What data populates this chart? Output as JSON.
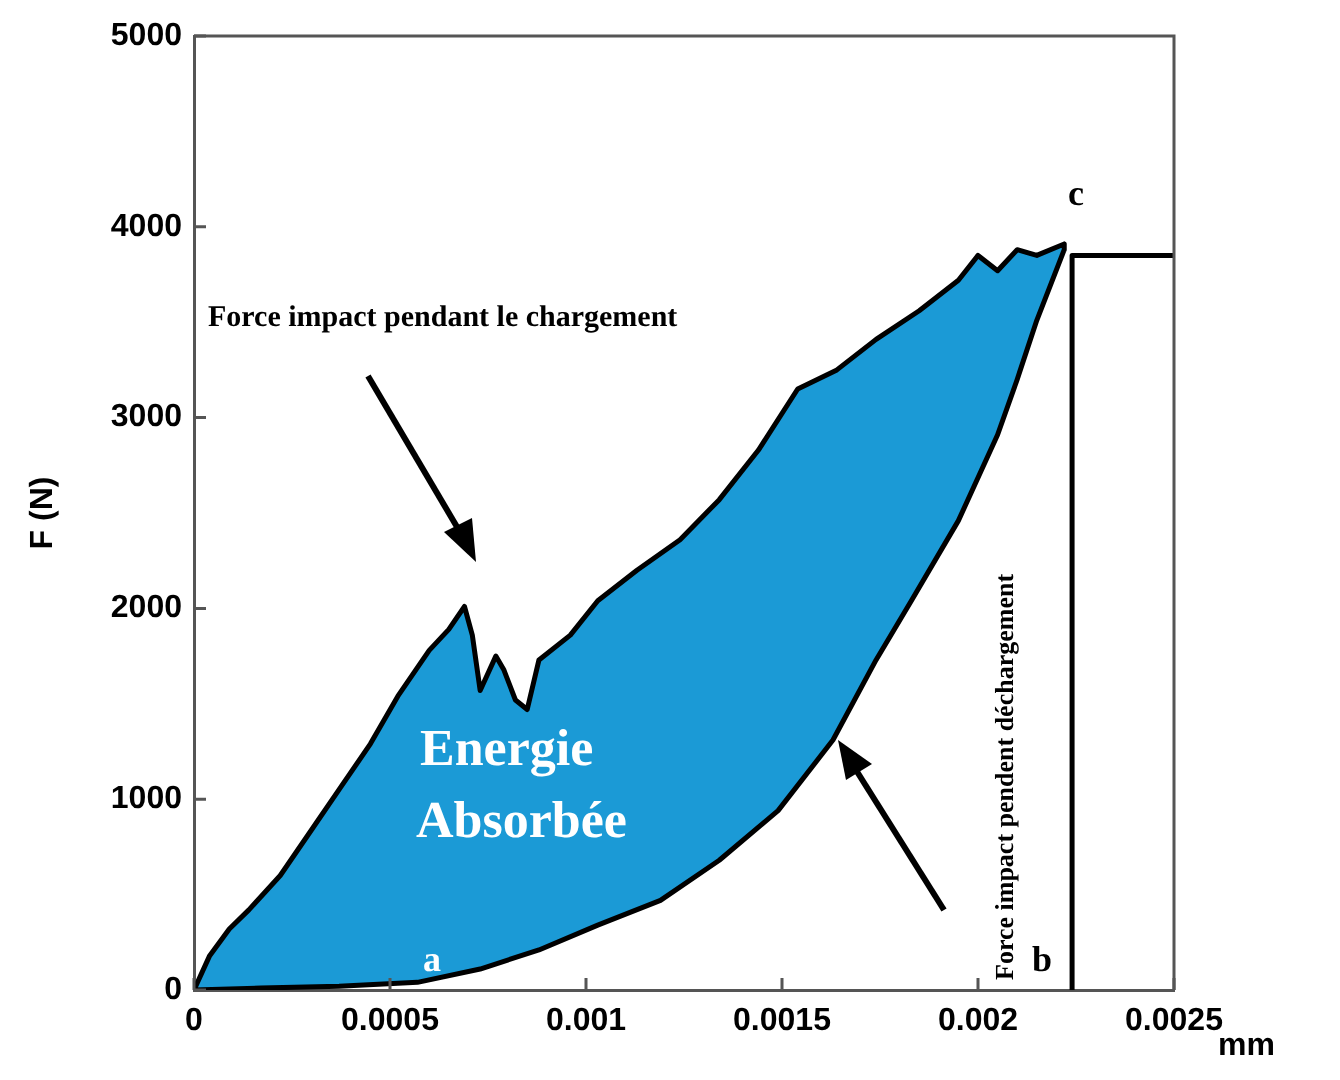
{
  "chart_data": {
    "type": "line",
    "xlabel": "mm",
    "ylabel": "F (N)",
    "xlim": [
      0,
      0.0025
    ],
    "ylim": [
      0,
      5000
    ],
    "xticks": [
      0,
      0.0005,
      0.001,
      0.0015,
      0.002,
      0.0025
    ],
    "yticks": [
      0,
      1000,
      2000,
      3000,
      4000,
      5000
    ],
    "grid": false,
    "legend": false,
    "marker": "none",
    "series": [
      {
        "type": "area",
        "color": "#1b9ad6",
        "x": [
          0,
          4e-05,
          9e-05,
          0.00014,
          0.00022,
          0.0003,
          0.00037,
          0.00045,
          0.00052,
          0.0006,
          0.00065,
          0.00069,
          0.00071,
          0.00073,
          0.00077,
          0.00079,
          0.00082,
          0.00085,
          0.00088,
          0.00096,
          0.00103,
          0.00113,
          0.00124,
          0.00134,
          0.00144,
          0.00154,
          0.00164,
          0.00174,
          0.00185,
          0.00195,
          0.002,
          0.00205,
          0.0021,
          0.00215,
          0.00222,
          0.00222,
          0.00215,
          0.0021,
          0.00205,
          0.00195,
          0.00183,
          0.00174,
          0.00163,
          0.00149,
          0.00134,
          0.00119,
          0.00103,
          0.00088,
          0.00073,
          0.00057,
          0.00037,
          0.00017,
          0
        ],
        "values": [
          0,
          180,
          320,
          420,
          600,
          840,
          1050,
          1290,
          1540,
          1780,
          1890,
          2010,
          1860,
          1570,
          1750,
          1680,
          1520,
          1470,
          1730,
          1860,
          2040,
          2200,
          2360,
          2570,
          2830,
          3150,
          3250,
          3410,
          3560,
          3720,
          3850,
          3770,
          3880,
          3850,
          3910,
          3880,
          3510,
          3200,
          2910,
          2460,
          2040,
          1730,
          1310,
          940,
          680,
          470,
          340,
          210,
          110,
          40,
          20,
          10,
          0
        ]
      },
      {
        "type": "line",
        "color": "#000000",
        "x": [
          0.00224,
          0.00224,
          0.0025
        ],
        "values": [
          0,
          3850,
          3850
        ]
      }
    ],
    "annotations": [
      "Force impact pendant le chargement",
      "Energie Absorbée",
      "Force impact pendent déchargement",
      "a",
      "b",
      "c"
    ]
  }
}
